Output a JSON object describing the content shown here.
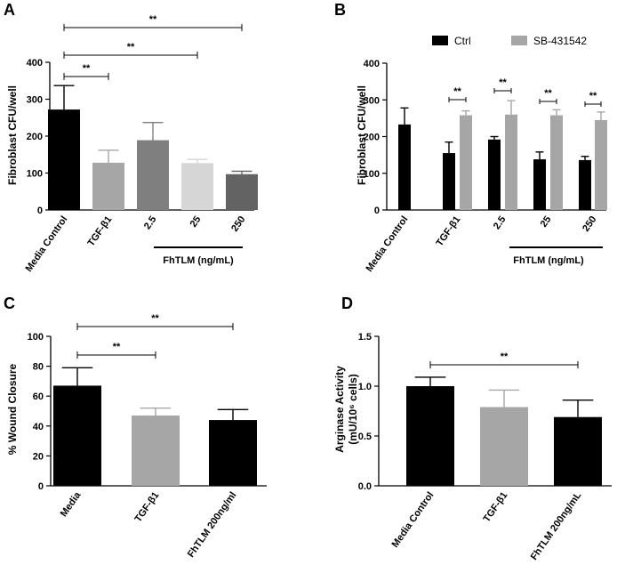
{
  "chart_data": [
    {
      "panel": "A",
      "type": "bar",
      "ylabel": "Fibroblast CFU/well",
      "ylim": [
        0,
        400
      ],
      "yticks": [
        "0",
        "100",
        "200",
        "300",
        "400"
      ],
      "categories": [
        "Media Control",
        "TGF-β1",
        "2.5",
        "25",
        "250"
      ],
      "values": [
        272,
        128,
        189,
        127,
        97
      ],
      "errors": [
        65,
        34,
        48,
        10,
        8
      ],
      "colors": [
        "#000000",
        "#a6a6a6",
        "#7f7f7f",
        "#d6d6d6",
        "#636363"
      ],
      "group_label": "FhTLM (ng/mL)",
      "significance": [
        {
          "from": 0,
          "to": 1,
          "label": "**"
        },
        {
          "from": 0,
          "to": 3,
          "label": "**"
        },
        {
          "from": 0,
          "to": 4,
          "label": "**"
        }
      ]
    },
    {
      "panel": "B",
      "type": "grouped-bar",
      "ylabel": "Fibroblast CFU/well",
      "ylim": [
        0,
        400
      ],
      "yticks": [
        "0",
        "100",
        "200",
        "300",
        "400"
      ],
      "categories": [
        "Media Control",
        "TGF-β1",
        "2.5",
        "25",
        "250"
      ],
      "series": [
        {
          "name": "Ctrl",
          "color": "#000000",
          "values": [
            233,
            155,
            192,
            138,
            136
          ],
          "errors": [
            45,
            30,
            8,
            20,
            10
          ]
        },
        {
          "name": "SB-431542",
          "color": "#a6a6a6",
          "values": [
            null,
            258,
            260,
            258,
            245
          ],
          "errors": [
            null,
            12,
            38,
            15,
            22
          ]
        }
      ],
      "group_label": "FhTLM (ng/mL)",
      "significance": [
        {
          "category": 1,
          "label": "**"
        },
        {
          "category": 2,
          "label": "**"
        },
        {
          "category": 3,
          "label": "**"
        },
        {
          "category": 4,
          "label": "**"
        }
      ]
    },
    {
      "panel": "C",
      "type": "bar",
      "ylabel": "% Wound Closure",
      "ylim": [
        0,
        100
      ],
      "yticks": [
        "0",
        "20",
        "40",
        "60",
        "80",
        "100"
      ],
      "categories": [
        "Media",
        "TGF-β1",
        "FhTLM 200ng/ml"
      ],
      "values": [
        67,
        47,
        44
      ],
      "errors": [
        12,
        5,
        7
      ],
      "colors": [
        "#000000",
        "#a6a6a6",
        "#000000"
      ],
      "significance": [
        {
          "from": 0,
          "to": 1,
          "label": "**"
        },
        {
          "from": 0,
          "to": 2,
          "label": "**"
        }
      ]
    },
    {
      "panel": "D",
      "type": "bar",
      "ylabel_lines": [
        "Arginase Activity",
        "(mU/10⁶ cells)"
      ],
      "ylim": [
        0,
        1.5
      ],
      "yticks": [
        "0.0",
        "0.5",
        "1.0",
        "1.5"
      ],
      "categories": [
        "Media Control",
        "TGF-β1",
        "FhTLM 200ng/mL"
      ],
      "values": [
        1.0,
        0.79,
        0.69
      ],
      "errors": [
        0.09,
        0.17,
        0.17
      ],
      "colors": [
        "#000000",
        "#a6a6a6",
        "#000000"
      ],
      "significance": [
        {
          "from": 0,
          "to": 2,
          "label": "**"
        }
      ]
    }
  ]
}
